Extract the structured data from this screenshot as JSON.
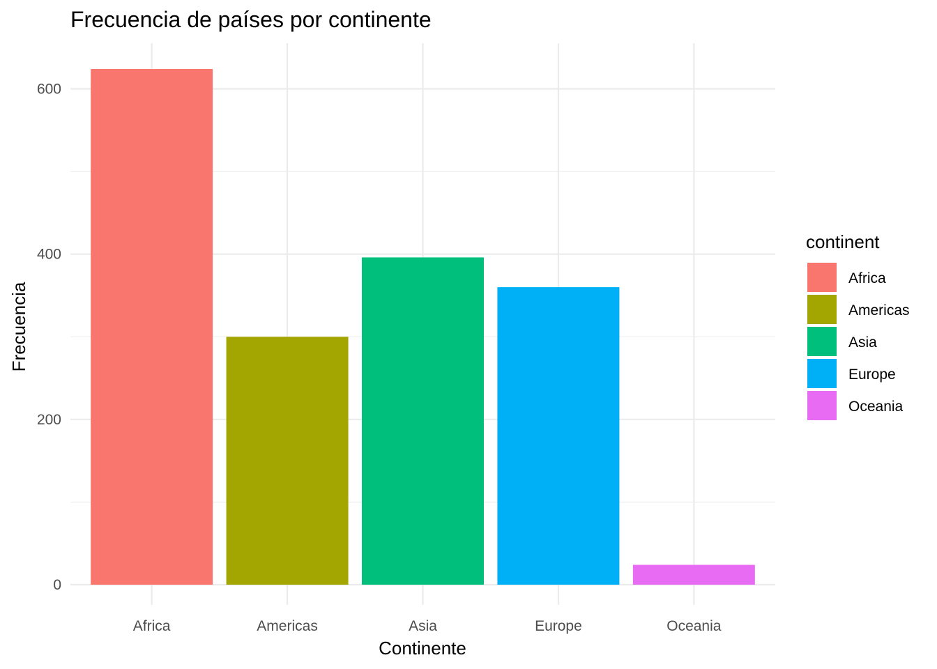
{
  "chart_data": {
    "type": "bar",
    "title": "Frecuencia de países por continente",
    "xlabel": "Continente",
    "ylabel": "Frecuencia",
    "categories": [
      "Africa",
      "Americas",
      "Asia",
      "Europe",
      "Oceania"
    ],
    "values": [
      624,
      300,
      396,
      360,
      24
    ],
    "colors": [
      "#F8766D",
      "#A3A500",
      "#00BF7D",
      "#00B0F6",
      "#E76BF3"
    ],
    "ylim": [
      0,
      655
    ],
    "yticks": [
      0,
      200,
      400,
      600
    ],
    "yticks_minor": [
      100,
      300,
      500
    ],
    "grid": true,
    "legend": {
      "title": "continent",
      "placement": "right",
      "entries": [
        "Africa",
        "Americas",
        "Asia",
        "Europe",
        "Oceania"
      ]
    }
  }
}
